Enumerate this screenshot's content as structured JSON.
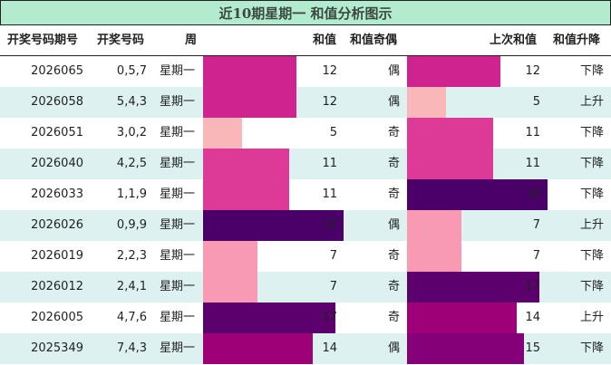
{
  "title": "近10期星期一 和值分析图示",
  "headers": {
    "period": "开奖号码期号",
    "numbers": "开奖号码",
    "week": "周",
    "sum": "和值",
    "parity": "和值奇偶",
    "prev_sum": "上次和值",
    "trend": "和值升降"
  },
  "rows": [
    {
      "period": "2026065",
      "numbers": "0,5,7",
      "week": "星期一",
      "sum": "12",
      "parity": "偶",
      "prev_sum": "12",
      "trend": "下降",
      "sum_color": "#cf2390",
      "prev_color": "#cf2390"
    },
    {
      "period": "2026058",
      "numbers": "5,4,3",
      "week": "星期一",
      "sum": "12",
      "parity": "偶",
      "prev_sum": "5",
      "trend": "上升",
      "sum_color": "#cf2390",
      "prev_color": "#fab7b9"
    },
    {
      "period": "2026051",
      "numbers": "3,0,2",
      "week": "星期一",
      "sum": "5",
      "parity": "奇",
      "prev_sum": "11",
      "trend": "下降",
      "sum_color": "#fab7b9",
      "prev_color": "#dd3a97"
    },
    {
      "period": "2026040",
      "numbers": "4,2,5",
      "week": "星期一",
      "sum": "11",
      "parity": "奇",
      "prev_sum": "11",
      "trend": "下降",
      "sum_color": "#dd3a97",
      "prev_color": "#dd3a97"
    },
    {
      "period": "2026033",
      "numbers": "1,1,9",
      "week": "星期一",
      "sum": "11",
      "parity": "奇",
      "prev_sum": "18",
      "trend": "下降",
      "sum_color": "#dd3a97",
      "prev_color": "#4a0068"
    },
    {
      "period": "2026026",
      "numbers": "0,9,9",
      "week": "星期一",
      "sum": "18",
      "parity": "偶",
      "prev_sum": "7",
      "trend": "上升",
      "sum_color": "#4a0068",
      "prev_color": "#f89ab4"
    },
    {
      "period": "2026019",
      "numbers": "2,2,3",
      "week": "星期一",
      "sum": "7",
      "parity": "奇",
      "prev_sum": "7",
      "trend": "下降",
      "sum_color": "#f89ab4",
      "prev_color": "#f89ab4"
    },
    {
      "period": "2026012",
      "numbers": "2,4,1",
      "week": "星期一",
      "sum": "7",
      "parity": "奇",
      "prev_sum": "17",
      "trend": "下降",
      "sum_color": "#f89ab4",
      "prev_color": "#5c006e"
    },
    {
      "period": "2026005",
      "numbers": "4,7,6",
      "week": "星期一",
      "sum": "17",
      "parity": "奇",
      "prev_sum": "14",
      "trend": "上升",
      "sum_color": "#5c006e",
      "prev_color": "#9e0078"
    },
    {
      "period": "2025349",
      "numbers": "7,4,3",
      "week": "星期一",
      "sum": "14",
      "parity": "偶",
      "prev_sum": "15",
      "trend": "下降",
      "sum_color": "#9e0078",
      "prev_color": "#850078"
    }
  ],
  "colors": {
    "title_bg": "#b3ebcf",
    "alt_row": "#def1f1"
  }
}
